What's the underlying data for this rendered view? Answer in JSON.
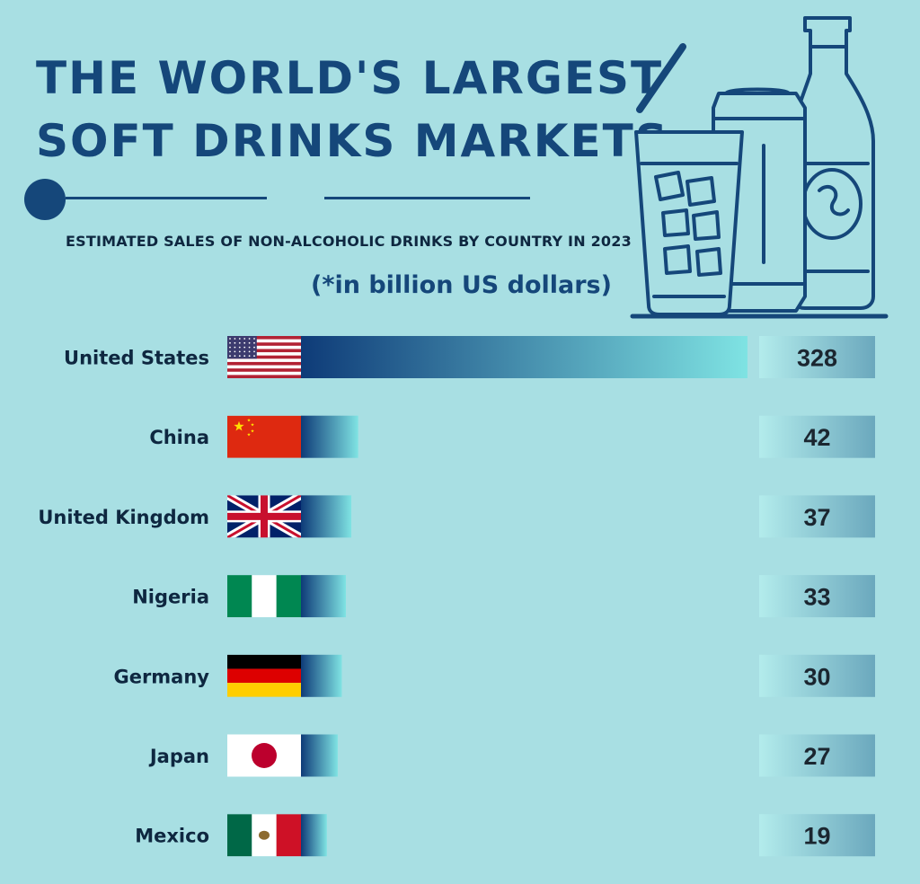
{
  "title_lines": [
    "The World's Largest",
    "Soft Drinks Markets"
  ],
  "subtitle": "ESTIMATED SALES OF NON-ALCOHOLIC DRINKS BY COUNTRY IN 2023",
  "unit_note": "(*in billion US dollars)",
  "colors": {
    "background": "#a8dfe3",
    "title": "#15477a",
    "bar_start": "#0e3b78",
    "bar_end": "#7fe3e3",
    "value_box_start": "#b3ecec",
    "value_box_end": "#6ba8bd"
  },
  "decorative_icons": [
    "glass-with-straw-icon",
    "soda-can-icon",
    "glass-bottle-icon"
  ],
  "chart_data": {
    "type": "bar",
    "orientation": "horizontal",
    "categories": [
      "United States",
      "China",
      "United Kingdom",
      "Nigeria",
      "Germany",
      "Japan",
      "Mexico"
    ],
    "values": [
      328,
      42,
      37,
      33,
      30,
      27,
      19
    ],
    "value_labels": [
      "328",
      "42",
      "37",
      "33",
      "30",
      "27",
      "19"
    ],
    "flags": [
      "us-flag-icon",
      "china-flag-icon",
      "uk-flag-icon",
      "nigeria-flag-icon",
      "germany-flag-icon",
      "japan-flag-icon",
      "mexico-flag-icon"
    ],
    "title": "The World's Largest Soft Drinks Markets",
    "subtitle": "ESTIMATED SALES OF NON-ALCOHOLIC DRINKS BY COUNTRY IN 2023",
    "unit": "(*in billion US dollars)",
    "grid": false,
    "legend": "none"
  }
}
